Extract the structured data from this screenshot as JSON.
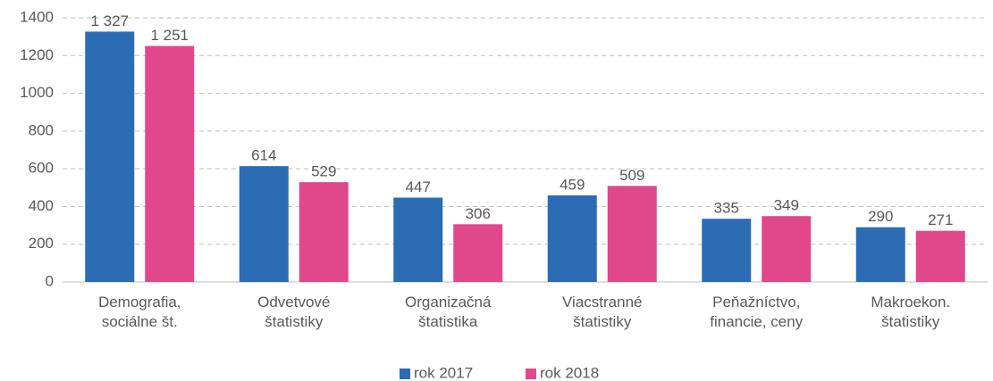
{
  "chart_data": {
    "type": "bar",
    "categories": [
      "Demografia,\nsociálne št.",
      "Odvetvové\nštatistiky",
      "Organizačná\nštatistika",
      "Viacstranné\nštatistiky",
      "Peňažníctvo,\nfinancie, ceny",
      "Makroekon.\nštatistiky"
    ],
    "series": [
      {
        "name": "rok 2017",
        "color": "#2b6cb5",
        "values": [
          1327,
          614,
          447,
          459,
          335,
          290
        ],
        "value_labels": [
          "1 327",
          "614",
          "447",
          "459",
          "335",
          "290"
        ]
      },
      {
        "name": "rok 2018",
        "color": "#e0488b",
        "values": [
          1251,
          529,
          306,
          509,
          349,
          271
        ],
        "value_labels": [
          "1 251",
          "529",
          "306",
          "509",
          "349",
          "271"
        ]
      }
    ],
    "ylim": [
      0,
      1400
    ],
    "yticks": [
      0,
      200,
      400,
      600,
      800,
      1000,
      1200,
      1400
    ],
    "grid": true,
    "legend": "bottom"
  }
}
